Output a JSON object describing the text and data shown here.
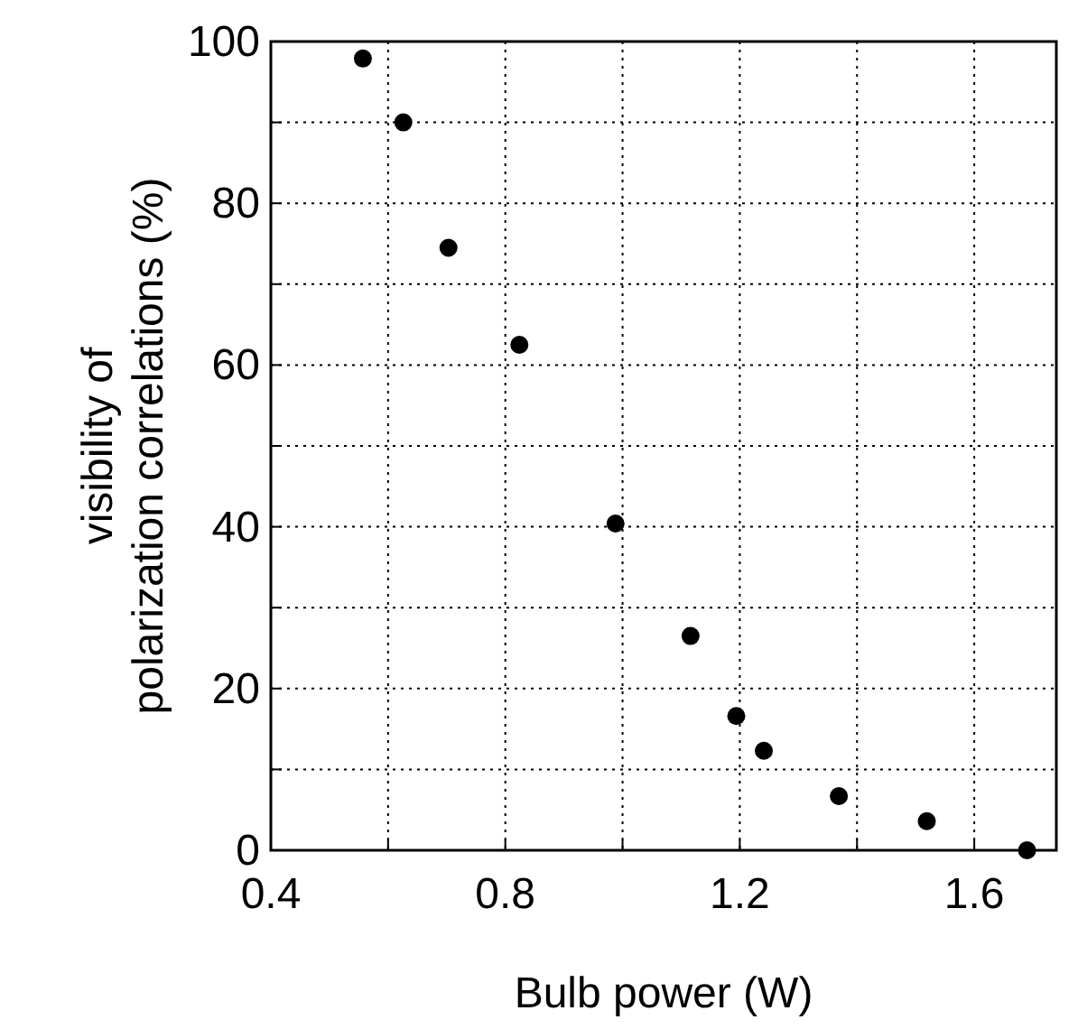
{
  "chart_data": {
    "type": "scatter",
    "xlabel": "Bulb power (W)",
    "ylabel": "visibility of\npolarization correlations (%)",
    "x": [
      0.557,
      0.626,
      0.703,
      0.824,
      0.988,
      1.116,
      1.194,
      1.241,
      1.369,
      1.519,
      1.69
    ],
    "series": [
      {
        "color": "#000000",
        "values": [
          97.9,
          90.0,
          74.5,
          62.5,
          40.4,
          26.5,
          16.6,
          12.3,
          6.7,
          3.6,
          0
        ]
      }
    ],
    "xlim": [
      0.4,
      1.74
    ],
    "ylim": [
      0,
      100
    ],
    "xticks": [
      0.4,
      {
        "value": 0.6,
        "label": null
      },
      0.8,
      {
        "value": 1.0,
        "label": null
      },
      1.2,
      {
        "value": 1.4,
        "label": null
      },
      1.6
    ],
    "yticks": [
      0,
      {
        "value": 10,
        "label": null
      },
      20,
      {
        "value": 30,
        "label": null
      },
      40,
      {
        "value": 50,
        "label": null
      },
      60,
      {
        "value": 70,
        "label": null
      },
      80,
      {
        "value": 90,
        "label": null
      },
      100
    ],
    "grid": true,
    "marker": "circle"
  }
}
